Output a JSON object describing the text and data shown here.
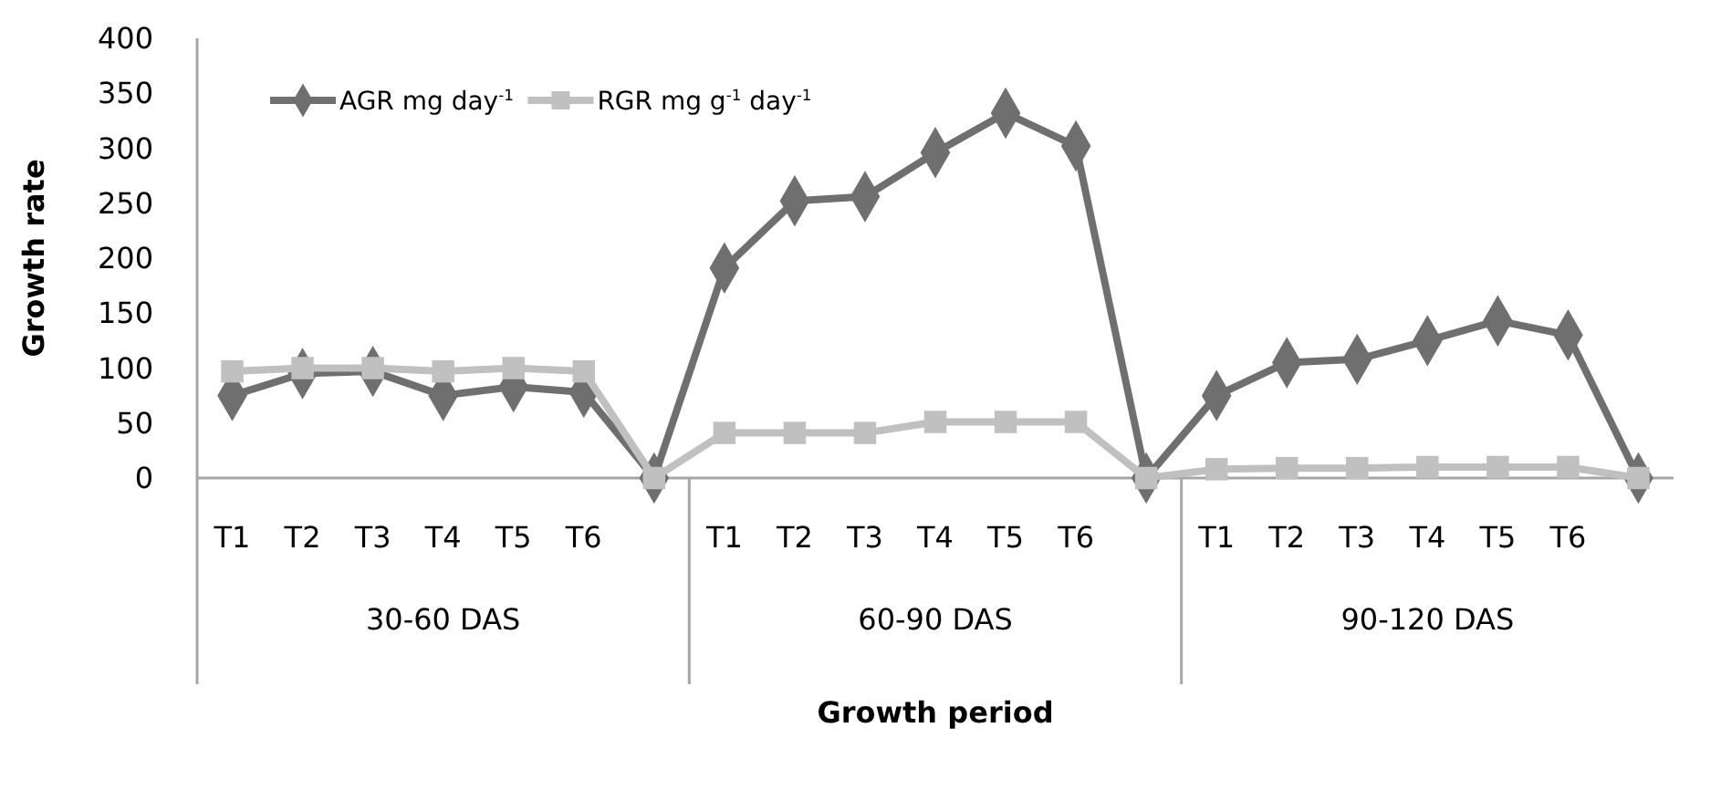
{
  "chart_data": {
    "type": "line",
    "xlabel": "Growth period",
    "ylabel": "Growth rate",
    "categories": [
      "T1",
      "T2",
      "T3",
      "T4",
      "T5",
      "T6",
      null,
      "T1",
      "T2",
      "T3",
      "T4",
      "T5",
      "T6",
      null,
      "T1",
      "T2",
      "T3",
      "T4",
      "T5",
      "T6",
      null
    ],
    "annotations": [
      "30-60 DAS",
      "60-90 DAS",
      "90-120 DAS"
    ],
    "series": [
      {
        "name": "AGR mg day$^{-1}$",
        "color": "#6f6f6f",
        "marker": "diamond",
        "values": [
          75,
          95,
          97,
          75,
          83,
          78,
          0,
          191,
          252,
          256,
          296,
          332,
          302,
          0,
          75,
          105,
          108,
          125,
          143,
          130,
          0
        ]
      },
      {
        "name": "RGR mg g$^{-1}$ day$^{-1}$",
        "color": "#c0c0c0",
        "marker": "square",
        "values": [
          97,
          100,
          100,
          97,
          100,
          97,
          0,
          41,
          41,
          41,
          51,
          51,
          51,
          0,
          8,
          9,
          9,
          10,
          10,
          10,
          0
        ]
      }
    ],
    "ylim": [
      0,
      400
    ],
    "yticks": [
      0,
      50,
      100,
      150,
      200,
      250,
      300,
      350,
      400
    ],
    "grid": false,
    "legend": "top left"
  }
}
